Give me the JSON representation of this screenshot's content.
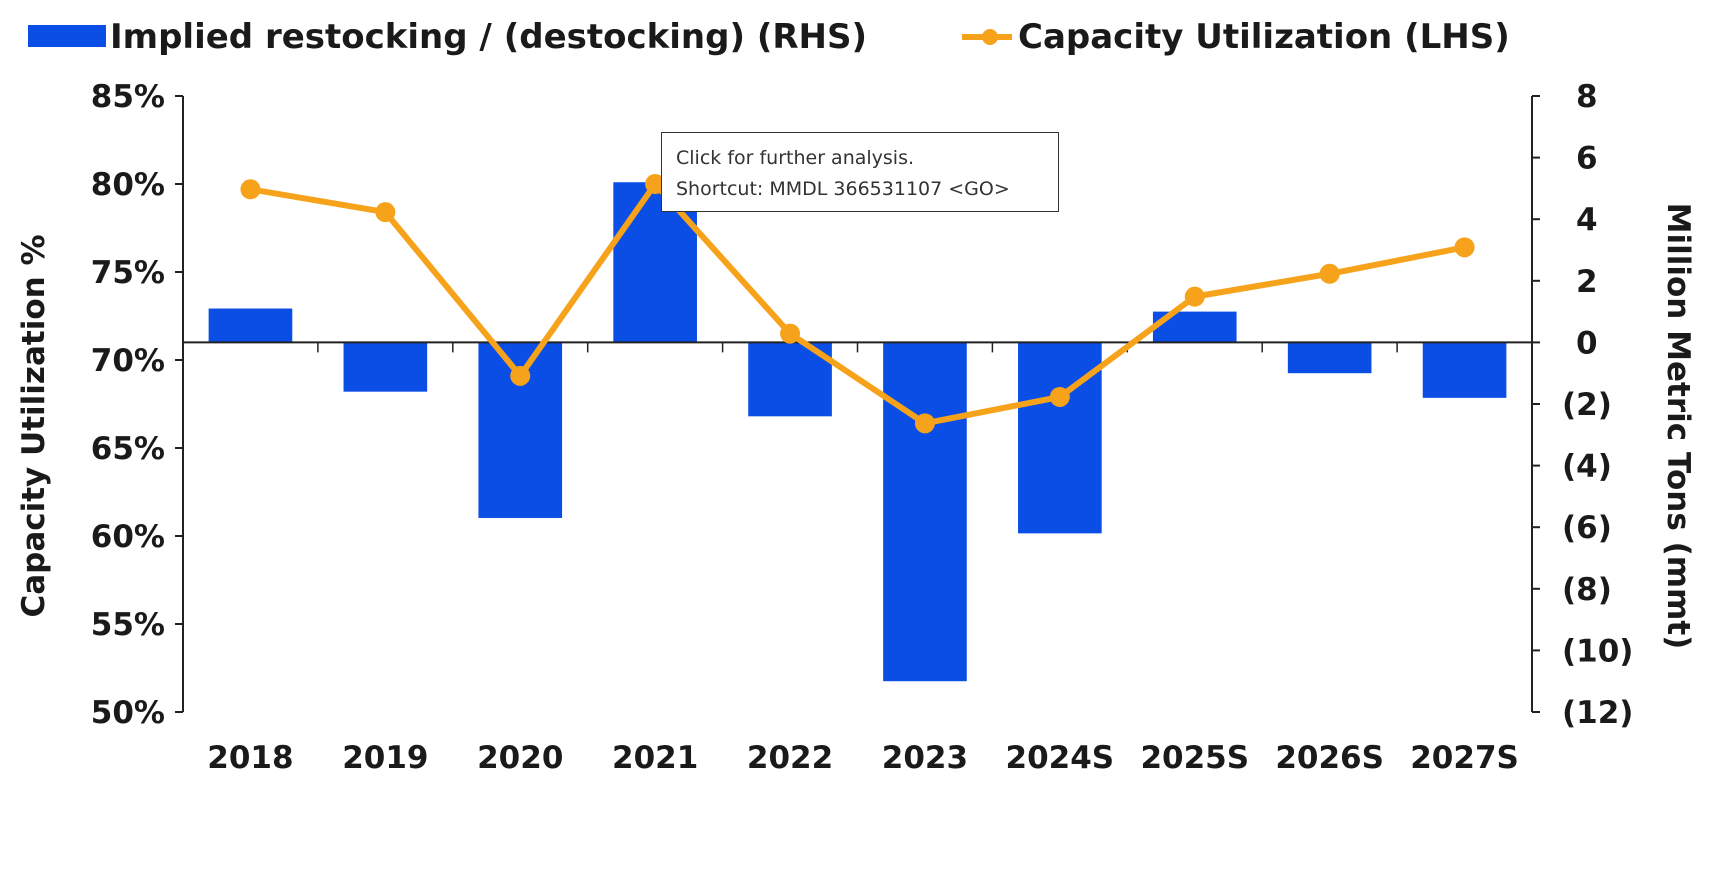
{
  "colors": {
    "bar": "#0a4ee6",
    "line": "#f7a21b",
    "axis": "#222222",
    "text": "#1a1a1a"
  },
  "tooltip": {
    "line1": "Click for further analysis.",
    "line2": "Shortcut: MMDL 366531107 <GO>"
  },
  "chart_data": {
    "type": "bar+line",
    "categories": [
      "2018",
      "2019",
      "2020",
      "2021",
      "2022",
      "2023",
      "2024S",
      "2025S",
      "2026S",
      "2027S"
    ],
    "series": [
      {
        "name": "Implied restocking / (destocking) (RHS)",
        "type": "bar",
        "axis": "right",
        "values": [
          1.1,
          -1.6,
          -5.7,
          5.2,
          -2.4,
          -11.0,
          -6.2,
          1.0,
          -1.0,
          -1.8
        ]
      },
      {
        "name": "Capacity Utilization (LHS)",
        "type": "line",
        "axis": "left",
        "values": [
          0.797,
          0.784,
          0.691,
          0.8,
          0.715,
          0.664,
          0.679,
          0.736,
          0.749,
          0.764
        ]
      }
    ],
    "left_axis": {
      "label": "Capacity Utilization %",
      "min": 0.5,
      "max": 0.85,
      "ticks": [
        0.85,
        0.8,
        0.75,
        0.7,
        0.65,
        0.6,
        0.55,
        0.5
      ],
      "tick_labels": [
        "85%",
        "80%",
        "75%",
        "70%",
        "65%",
        "60%",
        "55%",
        "50%"
      ]
    },
    "right_axis": {
      "label": "Million Metric Tons (mmt)",
      "min": -12,
      "max": 8,
      "ticks": [
        8,
        6,
        4,
        2,
        0,
        -2,
        -4,
        -6,
        -8,
        -10,
        -12
      ],
      "tick_labels": [
        "8",
        "6",
        "4",
        "2",
        "0",
        "(2)",
        "(4)",
        "(6)",
        "(8)",
        "(10)",
        "(12)"
      ]
    },
    "legend_position": "top",
    "grid": false
  }
}
